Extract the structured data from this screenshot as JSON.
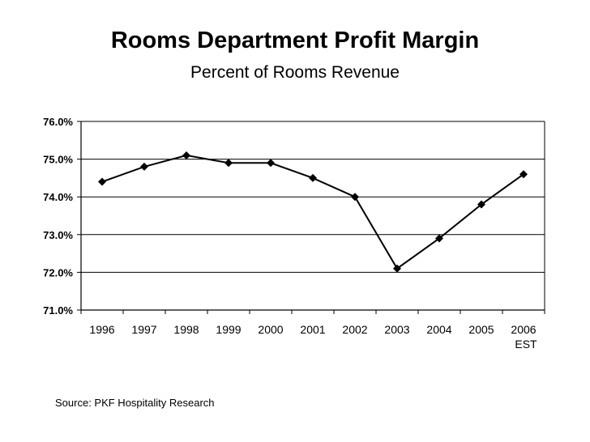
{
  "chart_data": {
    "type": "line",
    "title": "Rooms Department Profit Margin",
    "subtitle": "Percent of Rooms Revenue",
    "categories": [
      "1996",
      "1997",
      "1998",
      "1999",
      "2000",
      "2001",
      "2002",
      "2003",
      "2004",
      "2005",
      "2006"
    ],
    "category_sublabels": [
      "",
      "",
      "",
      "",
      "",
      "",
      "",
      "",
      "",
      "",
      "EST"
    ],
    "series": [
      {
        "values": [
          74.4,
          74.8,
          75.1,
          74.9,
          74.9,
          74.5,
          74.0,
          72.1,
          72.9,
          73.8,
          74.6
        ]
      }
    ],
    "yticks": [
      "76.0%",
      "75.0%",
      "74.0%",
      "73.0%",
      "72.0%",
      "71.0%"
    ],
    "ylim": [
      71,
      76
    ],
    "grid": true,
    "legend": "none",
    "marker": "diamond",
    "line_color": "#000000"
  },
  "source": "Source: PKF Hospitality Research"
}
